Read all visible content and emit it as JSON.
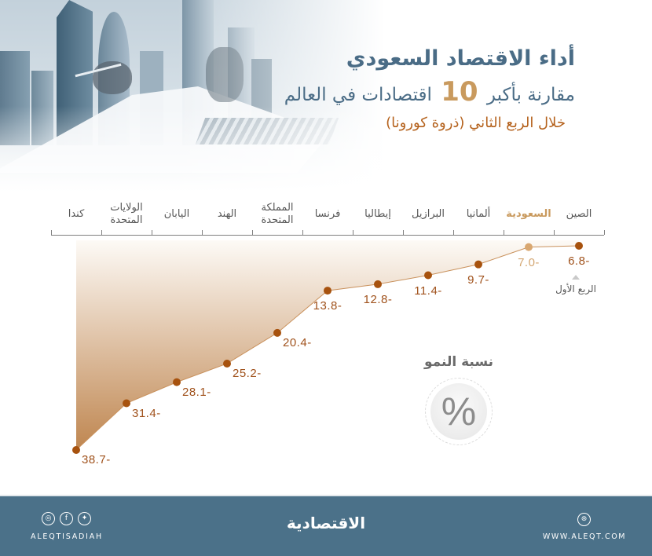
{
  "header": {
    "title": "أداء الاقتصاد السعودي",
    "subtitle_pre": "مقارنة بأكبر",
    "subtitle_number": "10",
    "subtitle_post": "اقتصادات في العالم",
    "period": "خلال الربع الثاني (ذروة كورونا)"
  },
  "chart_data": {
    "type": "area",
    "title": "أداء الاقتصاد السعودي مقارنة بأكبر 10 اقتصادات في العالم خلال الربع الثاني (ذروة كورونا)",
    "xlabel": "",
    "ylabel": "نسبة النمو",
    "ylabel_symbol": "%",
    "categories": [
      "كندا",
      "الولايات المتحدة",
      "اليابان",
      "الهند",
      "المملكة المتحدة",
      "فرنسا",
      "إيطاليا",
      "البرازيل",
      "ألمانيا",
      "السعودية",
      "الصين"
    ],
    "values": [
      -38.7,
      -31.4,
      -28.1,
      -25.2,
      -20.4,
      -13.8,
      -12.8,
      -11.4,
      -9.7,
      -7.0,
      -6.8
    ],
    "value_labels": [
      "38.7-",
      "31.4-",
      "28.1-",
      "25.2-",
      "20.4-",
      "13.8-",
      "12.8-",
      "11.4-",
      "9.7-",
      "7.0-",
      "6.8-"
    ],
    "label_pos": [
      "right",
      "right",
      "right",
      "right",
      "right",
      "below",
      "below",
      "below",
      "below",
      "below",
      "below"
    ],
    "highlight_index": 9,
    "highlight_category": "السعودية",
    "annotations": [
      {
        "category": "الصين",
        "text": "الربع الأول"
      }
    ],
    "grid": false,
    "legend": "none",
    "colors": {
      "line": "#c9915c",
      "point": "#a7520e",
      "highlight_point": "#d9a770",
      "highlight_text": "#c99a5e",
      "fill_top": "#fdfaf6",
      "fill_bottom": "#bf8650",
      "value_text": "#a0521c"
    }
  },
  "footer": {
    "social_icons": [
      "instagram-icon",
      "facebook-icon",
      "twitter-icon"
    ],
    "social_glyphs": [
      "◎",
      "f",
      "✦"
    ],
    "handle": "ALEQTISADIAH",
    "logo": "الاقتصادية",
    "web_glyph": "⊛",
    "website": "WWW.ALEQT.COM",
    "background": "#4b7189"
  }
}
